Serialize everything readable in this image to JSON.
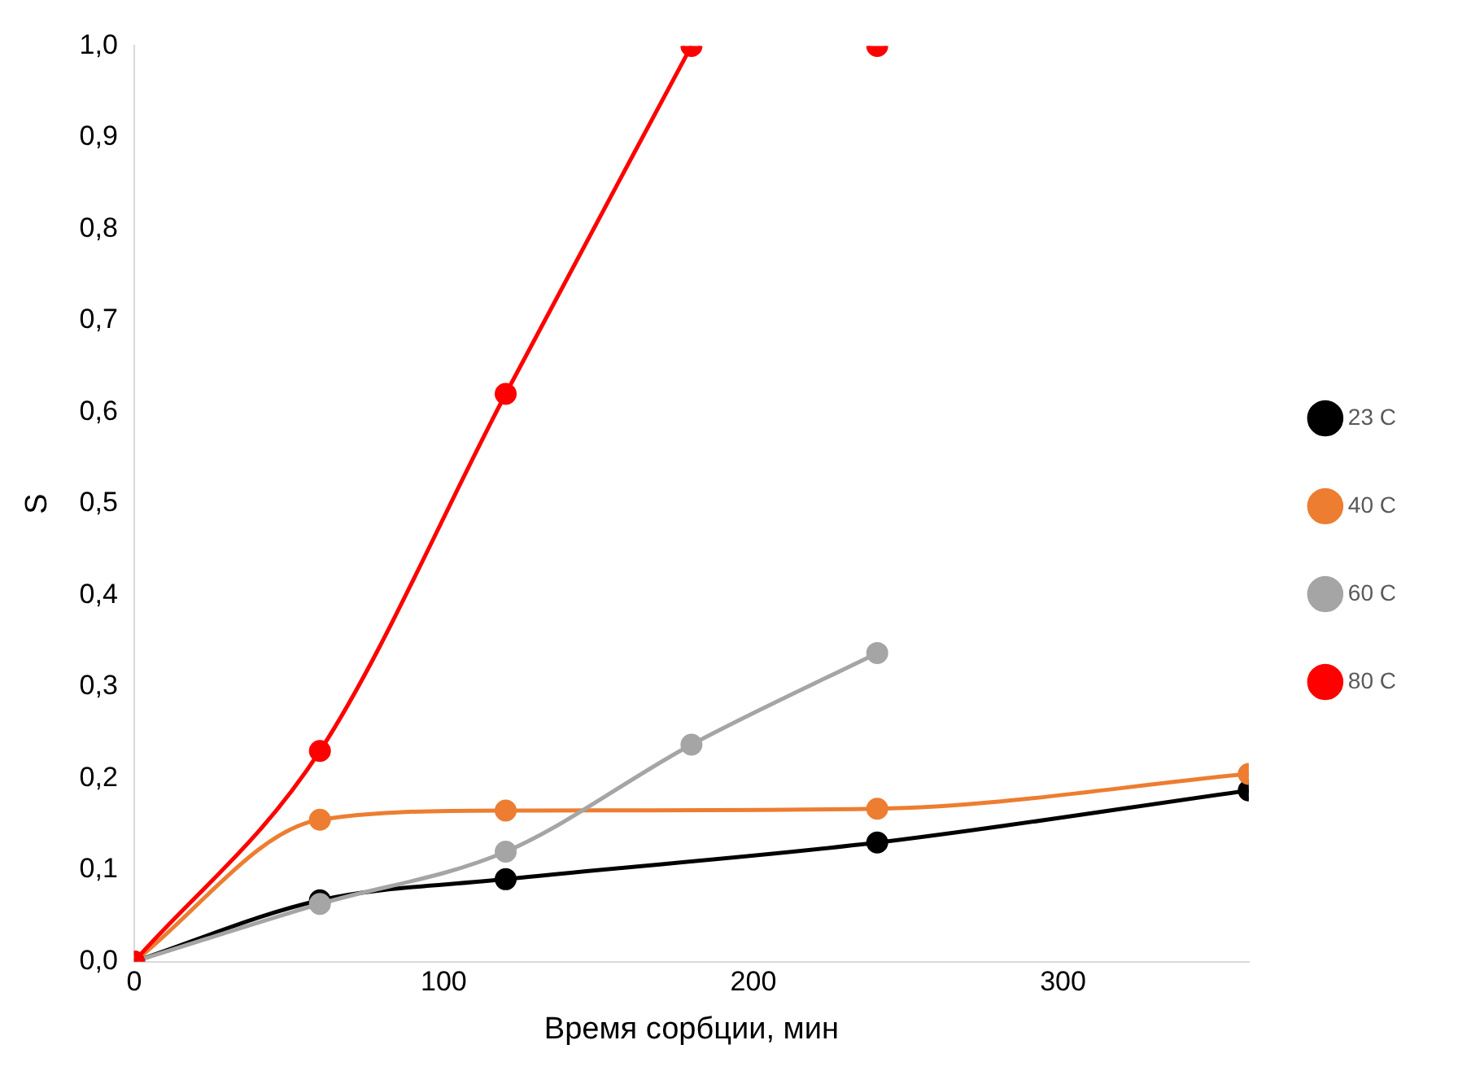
{
  "chart_data": {
    "type": "line",
    "xlabel": "Время сорбции, мин",
    "ylabel": "S",
    "xlim": [
      0,
      360
    ],
    "xticks": [
      0,
      100,
      200,
      300
    ],
    "ylim": [
      0,
      1
    ],
    "yticks": [
      {
        "value": 0,
        "label": "0,0"
      },
      {
        "value": 0.1,
        "label": "0,1"
      },
      {
        "value": 0.2,
        "label": "0,2"
      },
      {
        "value": 0.3,
        "label": "0,3"
      },
      {
        "value": 0.4,
        "label": "0,4"
      },
      {
        "value": 0.5,
        "label": "0,5"
      },
      {
        "value": 0.6,
        "label": "0,6"
      },
      {
        "value": 0.7,
        "label": "0,7"
      },
      {
        "value": 0.8,
        "label": "0,8"
      },
      {
        "value": 0.9,
        "label": "0,9"
      },
      {
        "value": 1,
        "label": "1,0"
      }
    ],
    "grid": false,
    "legend": "right",
    "marker": "circle",
    "line_style": "solid",
    "series": [
      {
        "name": "23 C",
        "color": "#000000",
        "x": [
          0,
          60,
          120,
          240,
          360
        ],
        "values": [
          0,
          0.067,
          0.09,
          0.13,
          0.187
        ]
      },
      {
        "name": "40 C",
        "color": "#ed7d31",
        "x": [
          0,
          60,
          120,
          240,
          360
        ],
        "values": [
          0,
          0.155,
          0.165,
          0.167,
          0.205
        ]
      },
      {
        "name": "60 C",
        "color": "#a5a5a5",
        "x": [
          0,
          60,
          120,
          180,
          240
        ],
        "values": [
          0,
          0.063,
          0.12,
          0.237,
          0.337
        ]
      },
      {
        "name": "80 C",
        "color": "#ff0000",
        "x": [
          0,
          60,
          120,
          180,
          210,
          240
        ],
        "values": [
          0,
          0.23,
          0.62,
          1.0,
          null,
          1.0
        ]
      }
    ]
  }
}
